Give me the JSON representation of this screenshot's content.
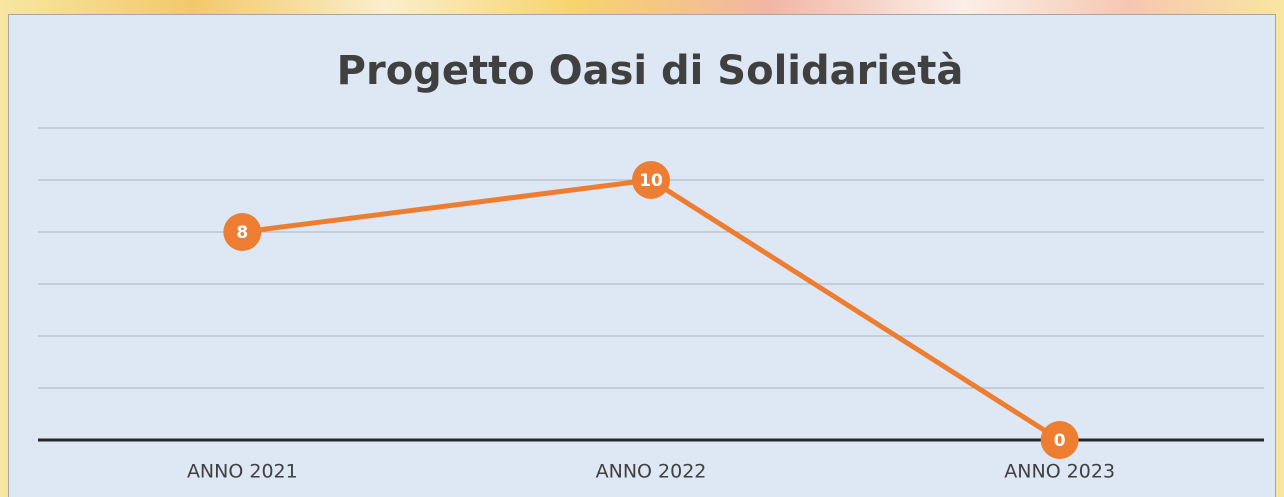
{
  "chart_data": {
    "type": "line",
    "title": "Progetto Oasi di Solidarietà",
    "categories": [
      "ANNO 2021",
      "ANNO 2022",
      "ANNO 2023"
    ],
    "series": [
      {
        "name": "Progetto Oasi di Solidarietà",
        "color": "#ed7d31",
        "values": [
          8,
          10,
          0
        ]
      }
    ],
    "ylim": [
      0,
      12
    ],
    "yticks": [
      0,
      2,
      4,
      6,
      8,
      10,
      12
    ],
    "grid": true
  }
}
